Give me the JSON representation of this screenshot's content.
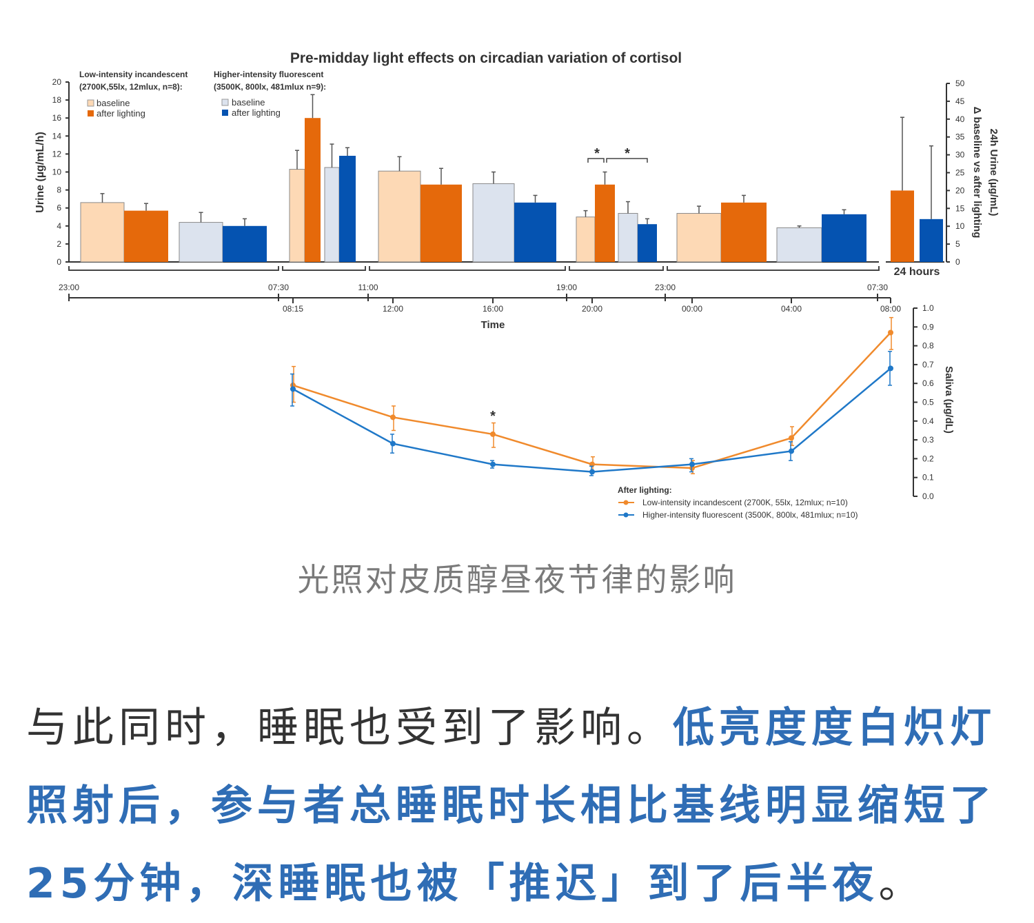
{
  "chart_data": [
    {
      "type": "bar",
      "title": "Pre-midday light effects on circadian variation of cortisol",
      "ylabel": "Urine (µg/mL/h)",
      "ylim": [
        0,
        20
      ],
      "yticks": [
        "0",
        "2",
        "4",
        "6",
        "8",
        "10",
        "12",
        "14",
        "16",
        "18",
        "20"
      ],
      "y2label_line1": "24h Urine (µg/mL)",
      "y2label_line2": "Δ baseline vs after lighting",
      "y2lim": [
        0,
        50
      ],
      "y2ticks": [
        "0",
        "5",
        "10",
        "15",
        "20",
        "25",
        "30",
        "35",
        "40",
        "45",
        "50"
      ],
      "xlabel": "Time",
      "legend": {
        "low": {
          "title1": "Low-intensity incandescent",
          "title2": "(2700K,55lx, 12mlux, n=8):",
          "baseline": "baseline",
          "after": "after lighting"
        },
        "high": {
          "title1": "Higher-intensity fluorescent",
          "title2": "(3500K, 800lx, 481mlux n=9):",
          "baseline": "baseline",
          "after": "after lighting"
        }
      },
      "interval_ticks": [
        "23:00",
        "07:30",
        "11:00",
        "19:00",
        "23:00",
        "07:30"
      ],
      "timepoint_ticks": [
        "08:15",
        "12:00",
        "16:00",
        "20:00",
        "00:00",
        "04:00",
        "08:00"
      ],
      "categories": [
        "23:00–07:30",
        "07:30–11:00",
        "11:00–19:00",
        "19:00–23:00",
        "23:00–07:30"
      ],
      "series": [
        {
          "name": "Low-intensity baseline",
          "color": "#fdd9b5",
          "values": [
            6.6,
            10.3,
            10.1,
            5.0,
            5.4
          ],
          "error_upper": [
            7.6,
            12.4,
            11.7,
            5.7,
            6.2
          ]
        },
        {
          "name": "Low-intensity after lighting",
          "color": "#e5690b",
          "values": [
            5.7,
            16.0,
            8.6,
            8.6,
            6.6
          ],
          "error_upper": [
            6.5,
            18.6,
            10.4,
            10.0,
            7.4
          ]
        },
        {
          "name": "Higher-intensity baseline",
          "color": "#dce3ee",
          "values": [
            4.4,
            10.5,
            8.7,
            5.4,
            3.8
          ],
          "error_upper": [
            5.5,
            13.1,
            10.0,
            6.7,
            4.0
          ]
        },
        {
          "name": "Higher-intensity after lighting",
          "color": "#0553b1",
          "values": [
            4.0,
            11.8,
            6.6,
            4.2,
            5.3
          ],
          "error_upper": [
            4.8,
            12.7,
            7.4,
            4.8,
            5.8
          ]
        }
      ],
      "significance": [
        "*",
        "*"
      ],
      "delta_24h": {
        "label": "24 hours",
        "values": [
          20,
          12
        ],
        "error_upper": [
          40.5,
          32.5
        ],
        "colors": [
          "#e5690b",
          "#0553b1"
        ]
      },
      "grid": false
    },
    {
      "type": "line",
      "ylabel": "Saliva (µg/dL)",
      "ylim": [
        0,
        1.0
      ],
      "yticks": [
        "0.0",
        "0.1",
        "0.2",
        "0.3",
        "0.4",
        "0.5",
        "0.6",
        "0.7",
        "0.8",
        "0.9",
        "1.0"
      ],
      "x": [
        "08:15",
        "12:00",
        "16:00",
        "20:00",
        "00:00",
        "04:00",
        "08:00"
      ],
      "legend_title": "After lighting:",
      "series": [
        {
          "name": "Low-intensity incandescent  (2700K, 55lx, 12mlux; n=10)",
          "color": "#f08a2c",
          "values": [
            0.59,
            0.42,
            0.33,
            0.17,
            0.15,
            0.31,
            0.87
          ],
          "error_low": [
            0.5,
            0.35,
            0.26,
            0.13,
            0.12,
            0.27,
            0.78
          ],
          "error_high": [
            0.69,
            0.48,
            0.39,
            0.21,
            0.19,
            0.37,
            0.95
          ]
        },
        {
          "name": "Higher-intensity fluorescent (3500K, 800lx, 481mlux; n=10)",
          "color": "#1f78c8",
          "values": [
            0.57,
            0.28,
            0.17,
            0.13,
            0.17,
            0.24,
            0.68
          ],
          "error_low": [
            0.48,
            0.23,
            0.15,
            0.11,
            0.13,
            0.19,
            0.59
          ],
          "error_high": [
            0.65,
            0.33,
            0.19,
            0.16,
            0.2,
            0.29,
            0.77
          ]
        }
      ],
      "significance": "*",
      "grid": false
    }
  ],
  "caption": "光照对皮质醇昼夜节律的影响",
  "paragraph": {
    "normal": "与此同时，睡眠也受到了影响。",
    "highlight": "低亮度度白炽灯照射后，参与者总睡眠时长相比基线明显缩短了25分钟，深睡眠也被「推迟」到了后半夜",
    "end": "。"
  }
}
